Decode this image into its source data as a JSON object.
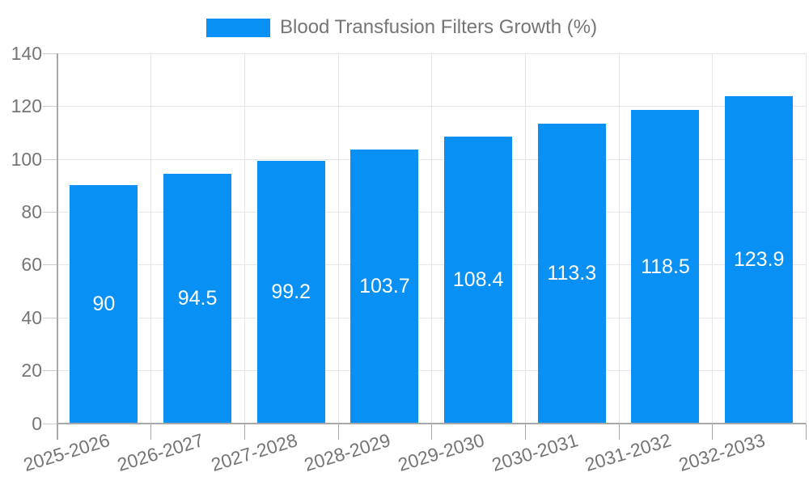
{
  "legend": {
    "label": "Blood Transfusion Filters Growth (%)"
  },
  "chart_data": {
    "type": "bar",
    "title": "Blood Transfusion Filters Growth (%)",
    "categories": [
      "2025-2026",
      "2026-2027",
      "2027-2028",
      "2028-2029",
      "2029-2030",
      "2030-2031",
      "2031-2032",
      "2032-2033"
    ],
    "values": [
      90,
      94.5,
      99.2,
      103.7,
      108.4,
      113.3,
      118.5,
      123.9
    ],
    "value_labels": [
      "90",
      "94.5",
      "99.2",
      "103.7",
      "108.4",
      "113.3",
      "118.5",
      "123.9"
    ],
    "xlabel": "",
    "ylabel": "",
    "ylim": [
      0,
      140
    ],
    "yticks": [
      0,
      20,
      40,
      60,
      80,
      100,
      120,
      140
    ],
    "grid": true,
    "legend_position": "top",
    "colors": {
      "bar": "#0990f5",
      "value_label": "#ffffff",
      "axis_label": "#757575",
      "axis_line": "#a8a8a8",
      "gridline": "#e6e6e6",
      "tick": "#cccccc"
    }
  }
}
